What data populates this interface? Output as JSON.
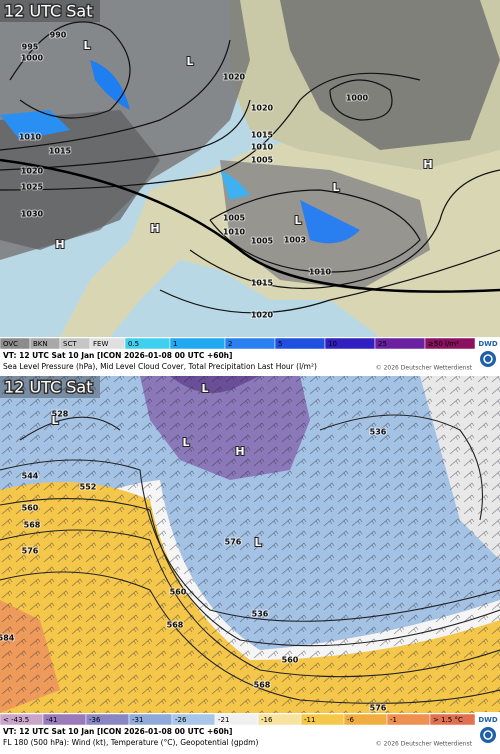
{
  "panels": [
    {
      "time_label": "12 UTC Sat",
      "isobar_labels": [
        "990",
        "995",
        "1000",
        "1010",
        "1015",
        "1020",
        "1025",
        "1030",
        "1020",
        "1020",
        "1015",
        "1010",
        "1005",
        "1005",
        "1010",
        "1005",
        "1003",
        "1010",
        "1015",
        "1020",
        "1000"
      ],
      "pressure_centers": [
        "L",
        "L",
        "L",
        "L",
        "H",
        "H",
        "H"
      ],
      "legend": [
        "OVC",
        "BKN",
        "SCT",
        "FEW",
        "0.5",
        "1",
        "2",
        "5",
        "10",
        "25",
        "≥50 l/m²"
      ],
      "valid_time": "VT: 12 UTC Sat  10 Jan [ICON 2026-01-08 00 UTC +60h]",
      "description": "Sea Level Pressure (hPa), Mid Level Cloud Cover, Total Precipitation Last Hour (l/m²)",
      "copyright": "© 2026 Deutscher Wetterdienst",
      "logo": "DWD"
    },
    {
      "time_label": "12 UTC Sat",
      "contour_labels": [
        "528",
        "536",
        "544",
        "552",
        "560",
        "568",
        "576",
        "584",
        "560",
        "568",
        "576",
        "536",
        "560",
        "568",
        "576"
      ],
      "pressure_centers": [
        "L",
        "L",
        "L",
        "H",
        "L"
      ],
      "legend": [
        "< -43.5",
        "-41",
        "-36",
        "-31",
        "-26",
        "-21",
        "-16",
        "-11",
        "-6",
        "-1",
        "> 1.5 °C"
      ],
      "valid_time": "VT: 12 UTC Sat  10 Jan [ICON 2026-01-08 00 UTC +60h]",
      "description": "FL 180 (500 hPa): Wind (kt), Temperature (°C), Geopotential (gpdm)",
      "copyright": "© 2026 Deutscher Wetterdienst",
      "logo": "DWD"
    }
  ]
}
